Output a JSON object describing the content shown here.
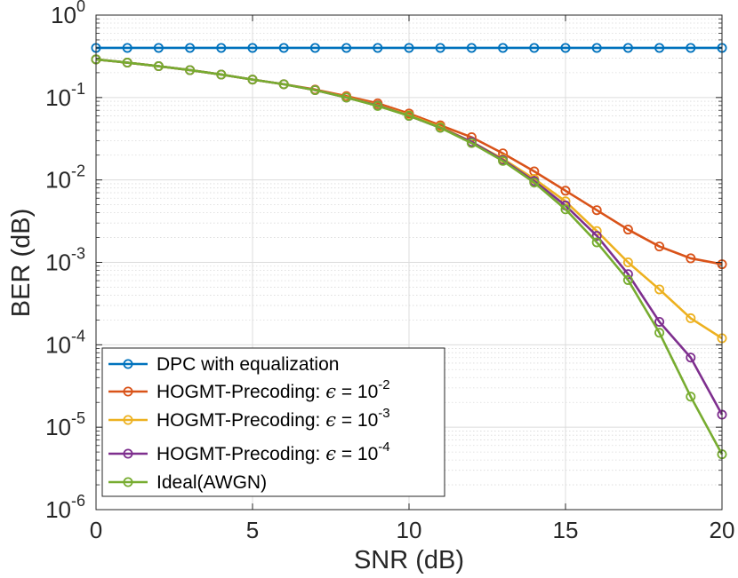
{
  "chart_data": {
    "type": "line",
    "title": "",
    "xlabel": "SNR (dB)",
    "ylabel": "BER (dB)",
    "xlim": [
      0,
      20
    ],
    "ylim": [
      1e-06,
      1
    ],
    "yscale": "log",
    "grid": true,
    "x_ticks": [
      "0",
      "5",
      "10",
      "15",
      "20"
    ],
    "y_tick_base": "10",
    "y_tick_exponents": [
      "-6",
      "-5",
      "-4",
      "-3",
      "-2",
      "-1",
      "0"
    ],
    "legend_position": "bottom-left",
    "x": [
      0,
      1,
      2,
      3,
      4,
      5,
      6,
      7,
      8,
      9,
      10,
      11,
      12,
      13,
      14,
      15,
      16,
      17,
      18,
      19,
      20
    ],
    "series": [
      {
        "name": "DPC with equalization",
        "label_parts": {
          "text": "DPC with equalization"
        },
        "color": "#0072BD",
        "values": [
          0.4,
          0.4,
          0.4,
          0.4,
          0.4,
          0.4,
          0.4,
          0.4,
          0.4,
          0.4,
          0.4,
          0.4,
          0.4,
          0.4,
          0.4,
          0.4,
          0.4,
          0.4,
          0.4,
          0.4,
          0.4
        ]
      },
      {
        "name": "HOGMT-Precoding: ϵ = 10^-2",
        "label_parts": {
          "text": "HOGMT-Precoding: ",
          "symbol": "ϵ",
          "eq": " = 10",
          "exp": "-2"
        },
        "color": "#D95319",
        "values": [
          0.29,
          0.265,
          0.24,
          0.215,
          0.19,
          0.165,
          0.145,
          0.125,
          0.104,
          0.085,
          0.064,
          0.046,
          0.033,
          0.021,
          0.0127,
          0.0074,
          0.0043,
          0.0025,
          0.00156,
          0.00112,
          0.00095
        ]
      },
      {
        "name": "HOGMT-Precoding: ϵ = 10^-3",
        "label_parts": {
          "text": "HOGMT-Precoding: ",
          "symbol": "ϵ",
          "eq": " = 10",
          "exp": "-3"
        },
        "color": "#EDB120",
        "values": [
          0.29,
          0.265,
          0.24,
          0.215,
          0.19,
          0.165,
          0.145,
          0.123,
          0.101,
          0.081,
          0.061,
          0.044,
          0.029,
          0.018,
          0.0103,
          0.0055,
          0.0024,
          0.001,
          0.00047,
          0.00021,
          0.00012
        ]
      },
      {
        "name": "HOGMT-Precoding: ϵ = 10^-4",
        "label_parts": {
          "text": "HOGMT-Precoding: ",
          "symbol": "ϵ",
          "eq": " = 10",
          "exp": "-4"
        },
        "color": "#7E2F8E",
        "values": [
          0.29,
          0.265,
          0.24,
          0.215,
          0.19,
          0.165,
          0.145,
          0.123,
          0.1,
          0.08,
          0.06,
          0.043,
          0.029,
          0.0175,
          0.0097,
          0.0049,
          0.0021,
          0.00072,
          0.00019,
          7e-05,
          1.42e-05
        ]
      },
      {
        "name": "Ideal(AWGN)",
        "label_parts": {
          "text": "Ideal(AWGN)"
        },
        "color": "#77AC30",
        "values": [
          0.29,
          0.265,
          0.24,
          0.215,
          0.19,
          0.165,
          0.145,
          0.123,
          0.1,
          0.079,
          0.06,
          0.043,
          0.028,
          0.017,
          0.0093,
          0.0044,
          0.00175,
          0.00061,
          0.00014,
          2.35e-05,
          4.7e-06
        ]
      }
    ]
  }
}
